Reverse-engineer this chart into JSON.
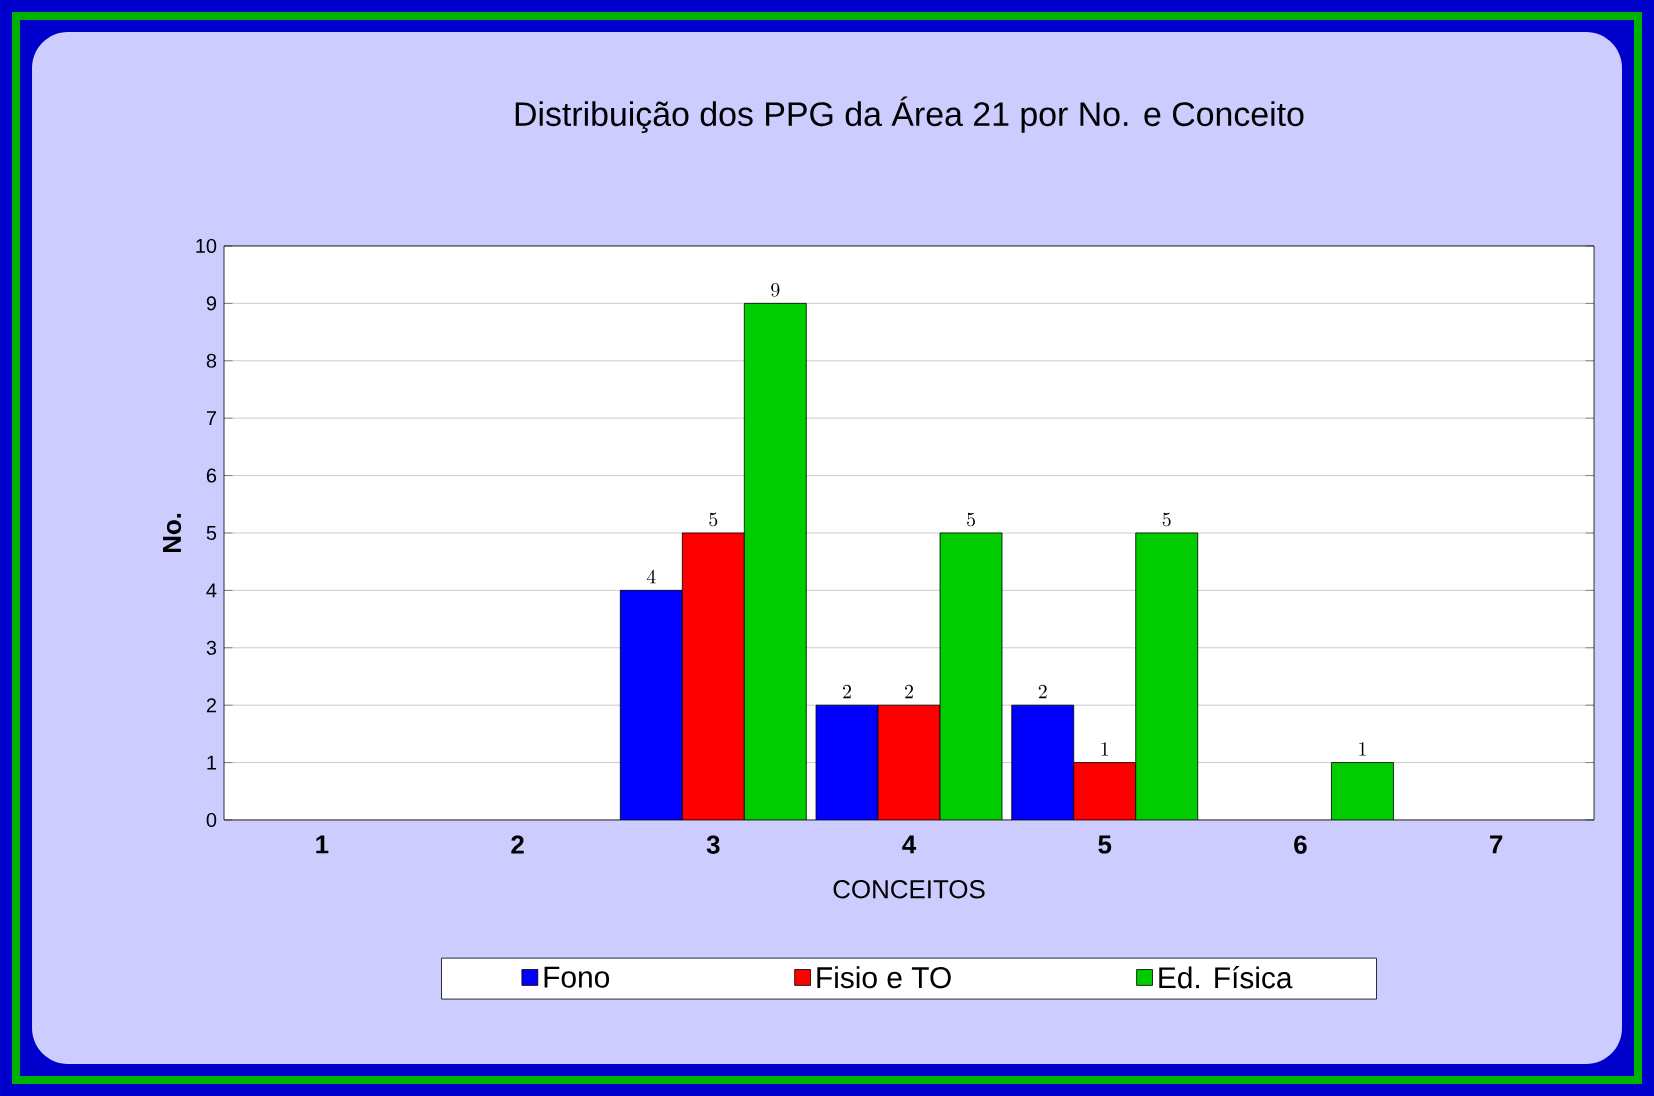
{
  "chart_data": {
    "type": "bar",
    "title": "Distribuição dos PPG da Área 21 por No. e Conceito",
    "xlabel": "CONCEITOS",
    "ylabel": "No.",
    "categories": [
      "1",
      "2",
      "3",
      "4",
      "5",
      "6",
      "7"
    ],
    "series": [
      {
        "name": "Fono",
        "color": "#0000ff",
        "values": [
          null,
          null,
          4,
          2,
          2,
          null,
          null
        ]
      },
      {
        "name": "Fisio e TO",
        "color": "#ff0000",
        "values": [
          null,
          null,
          5,
          2,
          1,
          null,
          null
        ]
      },
      {
        "name": "Ed. Física",
        "color": "#00cc00",
        "values": [
          null,
          null,
          9,
          5,
          5,
          1,
          null
        ]
      }
    ],
    "ylim": [
      0,
      10
    ],
    "yticks": [
      0,
      1,
      2,
      3,
      4,
      5,
      6,
      7,
      8,
      9,
      10
    ],
    "grid": "y",
    "legend": "bottom",
    "data_labels": true
  }
}
